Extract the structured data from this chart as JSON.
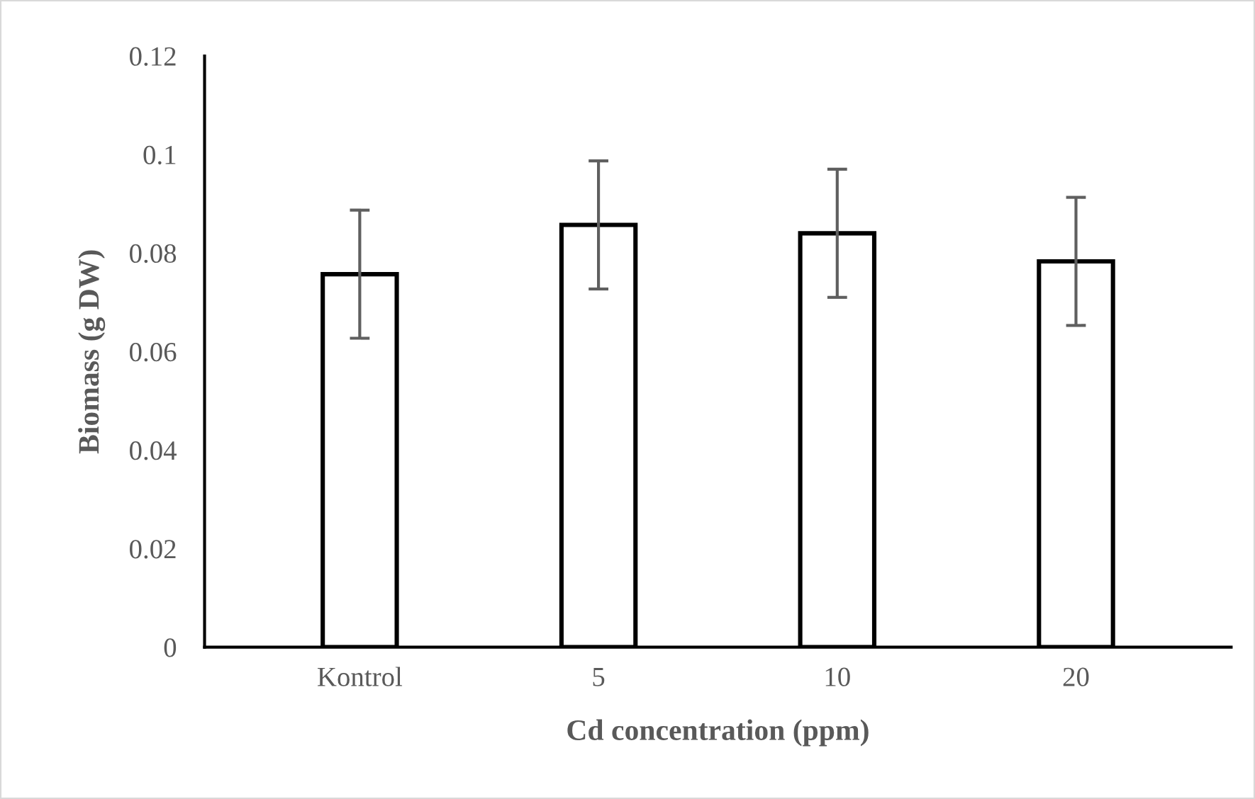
{
  "chart_data": {
    "type": "bar",
    "xlabel": "Cd concentration (ppm)",
    "ylabel": "Biomass (g DW)",
    "categories": [
      "Kontrol",
      "5",
      "10",
      "20"
    ],
    "series": [
      {
        "color": "#ffffff",
        "values": [
          0.0757,
          0.0857,
          0.084,
          0.0783
        ],
        "errors": [
          0.013,
          0.013,
          0.013,
          0.013
        ]
      }
    ],
    "ylim": [
      0,
      0.12
    ],
    "yticks": [
      0,
      0.02,
      0.04,
      0.06,
      0.08,
      0.1,
      0.12
    ],
    "grid": false,
    "legend": false
  }
}
